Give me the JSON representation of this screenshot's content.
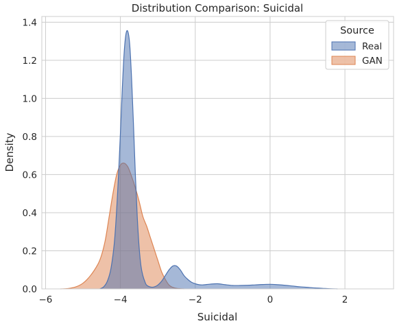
{
  "chart_data": {
    "type": "area",
    "title": "Distribution Comparison: Suicidal",
    "xlabel": "Suicidal",
    "ylabel": "Density",
    "xlim": [
      -6.1,
      3.3
    ],
    "ylim": [
      0,
      1.43
    ],
    "x_ticks": [
      -6,
      -4,
      -2,
      0,
      2
    ],
    "x_tick_labels": [
      "−6",
      "−4",
      "−2",
      "0",
      "2"
    ],
    "y_ticks": [
      0.0,
      0.2,
      0.4,
      0.6,
      0.8,
      1.0,
      1.2,
      1.4
    ],
    "y_tick_labels": [
      "0.0",
      "0.2",
      "0.4",
      "0.6",
      "0.8",
      "1.0",
      "1.2",
      "1.4"
    ],
    "grid": true,
    "legend": {
      "title": "Source",
      "position": "top-right",
      "entries": [
        {
          "label": "Real",
          "color": "#4c72b0"
        },
        {
          "label": "GAN",
          "color": "#dd8452"
        }
      ]
    },
    "series": [
      {
        "name": "Real",
        "color": "#4c72b0",
        "x": [
          -4.55,
          -4.45,
          -4.35,
          -4.25,
          -4.15,
          -4.05,
          -3.95,
          -3.9,
          -3.85,
          -3.8,
          -3.75,
          -3.7,
          -3.65,
          -3.6,
          -3.55,
          -3.5,
          -3.45,
          -3.4,
          -3.35,
          -3.3,
          -3.2,
          -3.1,
          -3.0,
          -2.9,
          -2.8,
          -2.7,
          -2.6,
          -2.5,
          -2.4,
          -2.3,
          -2.2,
          -2.1,
          -2.0,
          -1.9,
          -1.8,
          -1.6,
          -1.4,
          -1.2,
          -1.0,
          -0.8,
          -0.6,
          -0.4,
          -0.2,
          0.0,
          0.2,
          0.4,
          0.6,
          0.8,
          1.0,
          1.2,
          1.4,
          1.6,
          1.8
        ],
        "y": [
          0.0,
          0.01,
          0.04,
          0.11,
          0.27,
          0.6,
          1.05,
          1.24,
          1.34,
          1.35,
          1.28,
          1.1,
          0.86,
          0.6,
          0.38,
          0.22,
          0.12,
          0.07,
          0.04,
          0.02,
          0.01,
          0.01,
          0.02,
          0.04,
          0.07,
          0.1,
          0.12,
          0.12,
          0.1,
          0.07,
          0.05,
          0.035,
          0.027,
          0.022,
          0.021,
          0.025,
          0.027,
          0.022,
          0.018,
          0.018,
          0.019,
          0.021,
          0.023,
          0.024,
          0.022,
          0.019,
          0.015,
          0.011,
          0.008,
          0.005,
          0.003,
          0.001,
          0.0
        ]
      },
      {
        "name": "GAN",
        "color": "#dd8452",
        "x": [
          -5.6,
          -5.4,
          -5.2,
          -5.0,
          -4.8,
          -4.6,
          -4.5,
          -4.4,
          -4.3,
          -4.2,
          -4.1,
          -4.0,
          -3.9,
          -3.8,
          -3.7,
          -3.6,
          -3.5,
          -3.4,
          -3.3,
          -3.2,
          -3.1,
          -3.0,
          -2.9,
          -2.8,
          -2.7,
          -2.6,
          -2.5,
          -2.4,
          -2.3
        ],
        "y": [
          0.0,
          0.002,
          0.01,
          0.03,
          0.07,
          0.13,
          0.18,
          0.26,
          0.38,
          0.5,
          0.6,
          0.65,
          0.66,
          0.64,
          0.59,
          0.53,
          0.46,
          0.38,
          0.33,
          0.27,
          0.21,
          0.15,
          0.09,
          0.05,
          0.02,
          0.008,
          0.003,
          0.001,
          0.0
        ]
      }
    ]
  }
}
